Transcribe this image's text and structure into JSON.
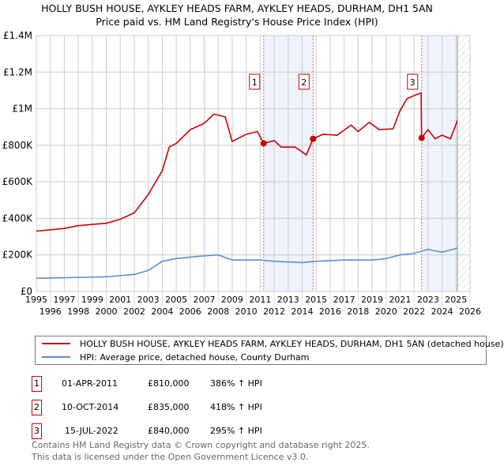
{
  "title": "HOLLY BUSH HOUSE, AYKLEY HEADS FARM, AYKLEY HEADS, DURHAM, DH1 5AN",
  "subtitle": "Price paid vs. HM Land Registry's House Price Index (HPI)",
  "chart_data": {
    "type": "line",
    "xlim": [
      1995,
      2026
    ],
    "ylim": [
      0,
      1400000
    ],
    "yticks": [
      0,
      200000,
      400000,
      600000,
      800000,
      1000000,
      1200000,
      1400000
    ],
    "ytick_labels": [
      "£0",
      "£200K",
      "£400K",
      "£600K",
      "£800K",
      "£1M",
      "£1.2M",
      "£1.4M"
    ],
    "xticks": [
      "1995",
      "1996",
      "1997",
      "1998",
      "1999",
      "2000",
      "2001",
      "2002",
      "2003",
      "2004",
      "2005",
      "2006",
      "2007",
      "2008",
      "2009",
      "2010",
      "2011",
      "2012",
      "2013",
      "2014",
      "2015",
      "2016",
      "2017",
      "2018",
      "2019",
      "2020",
      "2021",
      "2022",
      "2023",
      "2024",
      "2025",
      "2026"
    ],
    "grid": true,
    "series": [
      {
        "name": "HOLLY BUSH HOUSE, AYKLEY HEADS FARM, AYKLEY HEADS, DURHAM, DH1 5AN (detached house)",
        "color": "#cc0000",
        "x": [
          1995,
          1997,
          1998,
          2000,
          2001,
          2002,
          2003,
          2004,
          2004.5,
          2005,
          2006,
          2007,
          2007.7,
          2008.5,
          2009,
          2010,
          2010.8,
          2011.25,
          2012,
          2012.5,
          2013.5,
          2014.3,
          2014.78,
          2015.5,
          2016.5,
          2017.5,
          2018,
          2018.8,
          2019.5,
          2020.5,
          2021,
          2021.5,
          2022.2,
          2022.5,
          2022.54,
          2023,
          2023.5,
          2024,
          2024.6,
          2025.1
        ],
        "y": [
          330000,
          345000,
          360000,
          373000,
          395000,
          430000,
          530000,
          660000,
          790000,
          810000,
          885000,
          920000,
          970000,
          955000,
          820000,
          860000,
          875000,
          810000,
          825000,
          790000,
          790000,
          747000,
          835000,
          860000,
          855000,
          910000,
          875000,
          925000,
          885000,
          890000,
          990000,
          1055000,
          1078000,
          1085000,
          840000,
          885000,
          835000,
          855000,
          835000,
          935000
        ]
      },
      {
        "name": "HPI: Average price, detached house, County Durham",
        "color": "#5b8fd0",
        "x": [
          1995,
          2000,
          2002,
          2003,
          2004,
          2005,
          2007,
          2008,
          2009,
          2011,
          2012,
          2014,
          2015,
          2017,
          2019,
          2020,
          2021,
          2022,
          2023,
          2024,
          2025.1
        ],
        "y": [
          72000,
          80000,
          93000,
          115000,
          165000,
          180000,
          195000,
          200000,
          172000,
          172000,
          165000,
          158000,
          165000,
          172000,
          172000,
          180000,
          200000,
          208000,
          230000,
          215000,
          237000
        ]
      }
    ],
    "sales": [
      {
        "label": "1",
        "x": 2011.25,
        "y": 810000,
        "date": "01-APR-2011",
        "price": "£810,000",
        "hpi": "386% ↑ HPI"
      },
      {
        "label": "2",
        "x": 2014.78,
        "y": 835000,
        "date": "10-OCT-2014",
        "price": "£835,000",
        "hpi": "418% ↑ HPI"
      },
      {
        "label": "3",
        "x": 2022.54,
        "y": 840000,
        "date": "15-JUL-2022",
        "price": "£840,000",
        "hpi": "295% ↑ HPI"
      }
    ],
    "legend_placement": "bottom"
  },
  "legend": {
    "property": "HOLLY BUSH HOUSE, AYKLEY HEADS FARM, AYKLEY HEADS, DURHAM, DH1 5AN (detached house)",
    "hpi": "HPI: Average price, detached house, County Durham"
  },
  "footer": {
    "line1": "Contains HM Land Registry data © Crown copyright and database right 2025.",
    "line2": "This data is licensed under the Open Government Licence v3.0."
  }
}
